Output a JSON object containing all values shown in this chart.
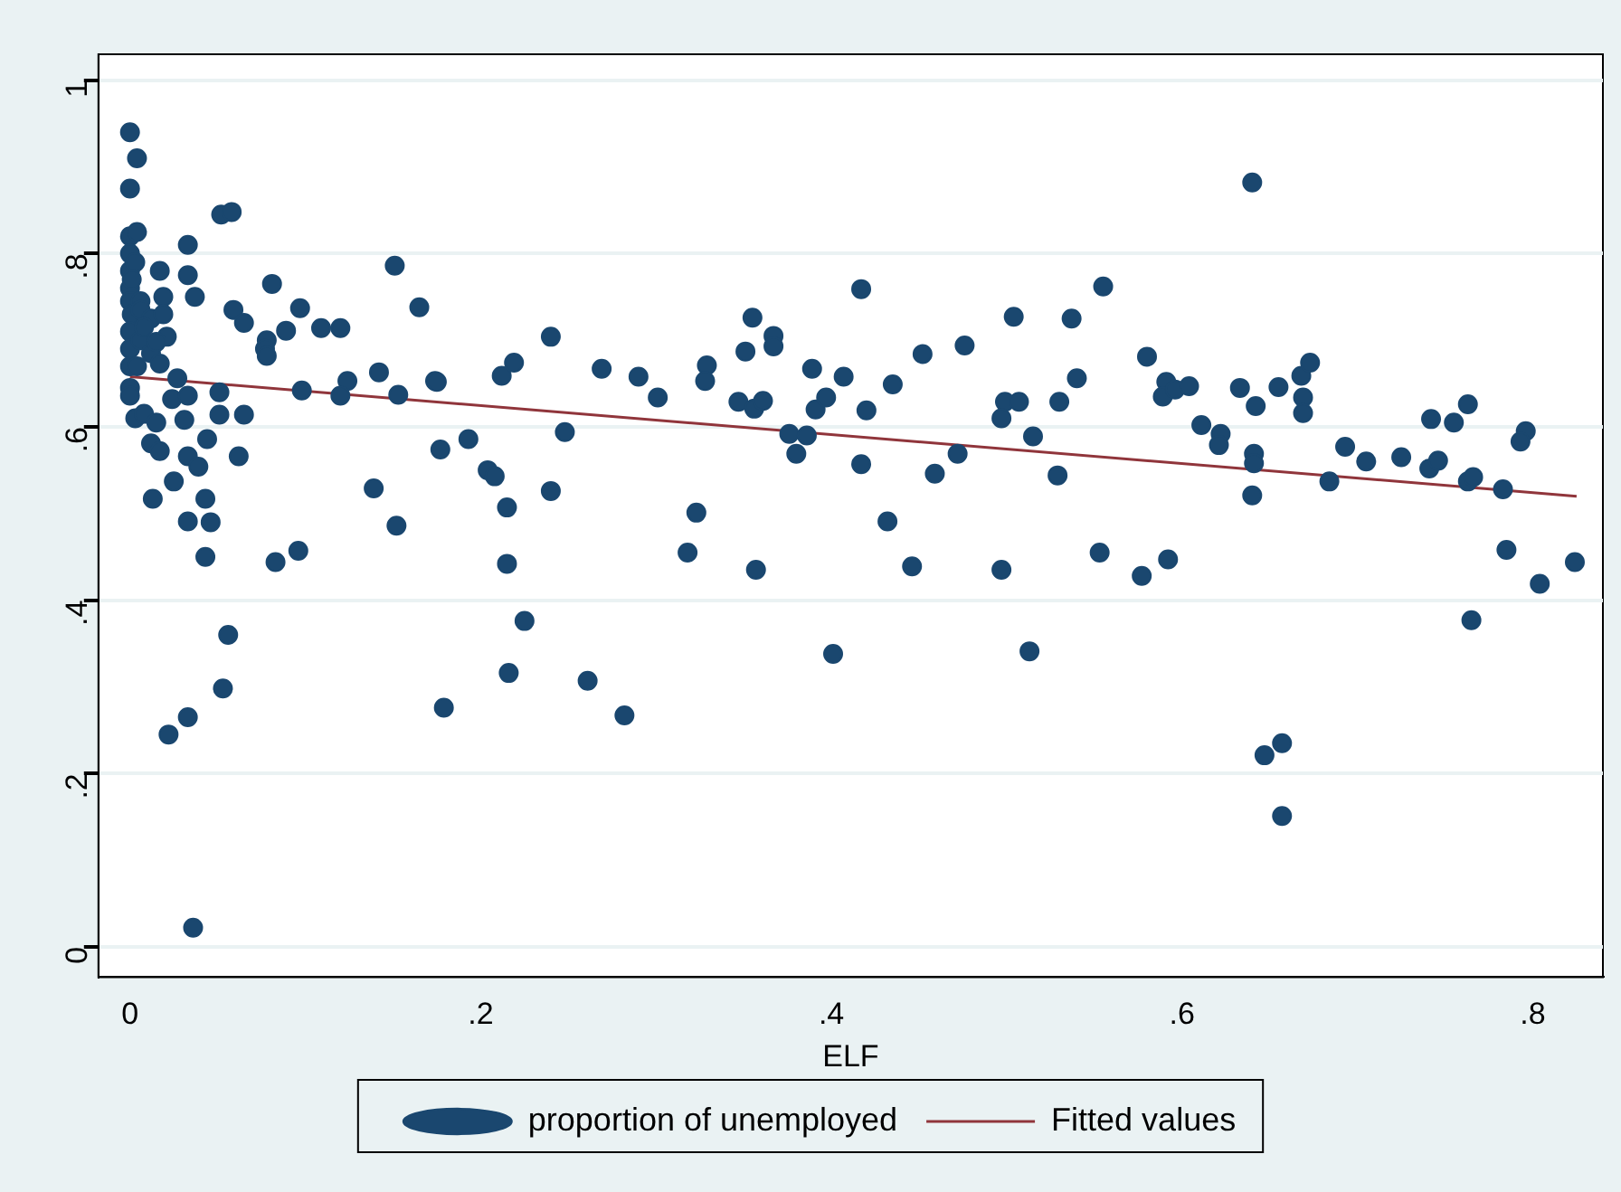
{
  "chart_data": {
    "type": "scatter",
    "xlabel": "ELF",
    "xlim": [
      -0.018,
      0.84
    ],
    "ylim": [
      -0.035,
      1.03
    ],
    "xticks": [
      0,
      {
        "value": 0.2,
        "label": ".2"
      },
      {
        "value": 0.4,
        "label": ".4"
      },
      {
        "value": 0.6,
        "label": ".6"
      },
      {
        "value": 0.8,
        "label": ".8"
      }
    ],
    "yticks": [
      0,
      {
        "value": 0.2,
        "label": ".2"
      },
      {
        "value": 0.4,
        "label": ".4"
      },
      {
        "value": 0.6,
        "label": ".6"
      },
      {
        "value": 0.8,
        "label": ".8"
      },
      1
    ],
    "grid": "y",
    "legend": "bottom",
    "series": [
      {
        "name": "proportion of unemployed",
        "marker": "circle",
        "color": "#1a476f",
        "x": [
          0,
          0.004,
          0,
          0,
          0.004,
          0,
          0,
          0,
          0,
          0.001,
          0,
          0,
          0,
          0,
          0.003,
          0.006,
          0.006,
          0.004,
          0.006,
          0.012,
          0.008,
          0.001,
          0,
          0.003,
          0.008,
          0.012,
          0.017,
          0.033,
          0.033,
          0.037,
          0.019,
          0.019,
          0.052,
          0.058,
          0.081,
          0.059,
          0.065,
          0.097,
          0.151,
          0.165,
          0.078,
          0.077,
          0.078,
          0.089,
          0.109,
          0.12,
          0.021,
          0.015,
          0.017,
          0.027,
          0.024,
          0.033,
          0.051,
          0.098,
          0.124,
          0.12,
          0.142,
          0.153,
          0.174,
          0.015,
          0.012,
          0.017,
          0.031,
          0.051,
          0.065,
          0.044,
          0.033,
          0.039,
          0.062,
          0.177,
          0.025,
          0.013,
          0.043,
          0.033,
          0.046,
          0.139,
          0.152,
          0.043,
          0.083,
          0.096,
          0.056,
          0.053,
          0.033,
          0.022,
          0.036,
          0.179,
          0.175,
          0.193,
          0.204,
          0.208,
          0.212,
          0.219,
          0.215,
          0.215,
          0.225,
          0.216,
          0.24,
          0.248,
          0.24,
          0.261,
          0.282,
          0.269,
          0.29,
          0.301,
          0.329,
          0.328,
          0.323,
          0.318,
          0.351,
          0.355,
          0.367,
          0.367,
          0.347,
          0.356,
          0.361,
          0.357,
          0.376,
          0.386,
          0.38,
          0.389,
          0.391,
          0.397,
          0.407,
          0.417,
          0.42,
          0.417,
          0.401,
          0.435,
          0.432,
          0.452,
          0.459,
          0.446,
          0.472,
          0.476,
          0.504,
          0.499,
          0.497,
          0.497,
          0.64,
          0.555,
          0.537,
          0.54,
          0.507,
          0.53,
          0.515,
          0.529,
          0.513,
          0.553,
          0.58,
          0.591,
          0.589,
          0.596,
          0.604,
          0.611,
          0.622,
          0.621,
          0.577,
          0.592,
          0.633,
          0.642,
          0.655,
          0.668,
          0.673,
          0.669,
          0.669,
          0.641,
          0.641,
          0.64,
          0.647,
          0.657,
          0.657,
          0.684,
          0.693,
          0.705,
          0.725,
          0.742,
          0.741,
          0.746,
          0.755,
          0.763,
          0.763,
          0.766,
          0.783,
          0.796,
          0.793,
          0.765,
          0.785,
          0.804,
          0.824
        ],
        "values": [
          0.94,
          0.91,
          0.875,
          0.82,
          0.825,
          0.8,
          0.78,
          0.76,
          0.745,
          0.73,
          0.71,
          0.69,
          0.67,
          0.645,
          0.79,
          0.745,
          0.7,
          0.67,
          0.735,
          0.725,
          0.715,
          0.77,
          0.636,
          0.61,
          0.615,
          0.685,
          0.78,
          0.81,
          0.775,
          0.75,
          0.75,
          0.73,
          0.845,
          0.848,
          0.765,
          0.735,
          0.72,
          0.737,
          0.786,
          0.738,
          0.7,
          0.69,
          0.682,
          0.711,
          0.714,
          0.714,
          0.704,
          0.698,
          0.673,
          0.656,
          0.632,
          0.636,
          0.64,
          0.642,
          0.653,
          0.636,
          0.663,
          0.637,
          0.653,
          0.605,
          0.581,
          0.572,
          0.608,
          0.614,
          0.614,
          0.586,
          0.566,
          0.554,
          0.566,
          0.574,
          0.537,
          0.517,
          0.517,
          0.491,
          0.49,
          0.529,
          0.486,
          0.45,
          0.444,
          0.457,
          0.36,
          0.298,
          0.265,
          0.245,
          0.022,
          0.276,
          0.652,
          0.586,
          0.55,
          0.543,
          0.659,
          0.674,
          0.507,
          0.442,
          0.376,
          0.316,
          0.704,
          0.594,
          0.526,
          0.307,
          0.267,
          0.667,
          0.658,
          0.634,
          0.671,
          0.653,
          0.501,
          0.455,
          0.687,
          0.726,
          0.705,
          0.693,
          0.629,
          0.621,
          0.63,
          0.435,
          0.592,
          0.59,
          0.569,
          0.667,
          0.62,
          0.634,
          0.658,
          0.759,
          0.619,
          0.557,
          0.338,
          0.649,
          0.491,
          0.684,
          0.546,
          0.439,
          0.569,
          0.694,
          0.727,
          0.629,
          0.61,
          0.435,
          0.882,
          0.762,
          0.725,
          0.656,
          0.629,
          0.629,
          0.589,
          0.544,
          0.341,
          0.455,
          0.681,
          0.652,
          0.635,
          0.643,
          0.647,
          0.602,
          0.592,
          0.579,
          0.428,
          0.447,
          0.645,
          0.624,
          0.646,
          0.659,
          0.674,
          0.634,
          0.616,
          0.569,
          0.558,
          0.521,
          0.221,
          0.235,
          0.151,
          0.537,
          0.577,
          0.56,
          0.565,
          0.609,
          0.552,
          0.561,
          0.605,
          0.626,
          0.537,
          0.542,
          0.528,
          0.595,
          0.583,
          0.377,
          0.458,
          0.419,
          0.444
        ]
      },
      {
        "name": "Fitted values",
        "type": "line",
        "marker": "none",
        "color": "#90353b",
        "x": [
          0,
          0.825
        ],
        "values": [
          0.658,
          0.52
        ]
      }
    ]
  }
}
